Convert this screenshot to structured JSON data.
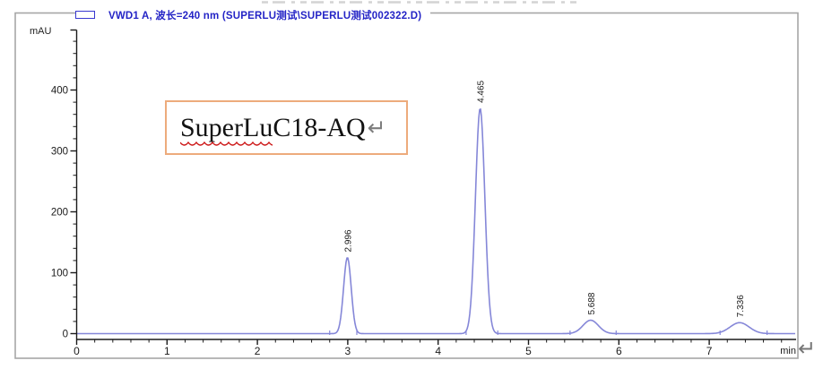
{
  "legend": {
    "label": "VWD1 A, 波长=240 nm (SUPERLU测试\\SUPERLU测试002322.D)"
  },
  "annotation_box": {
    "word": "SuperLu",
    "rest": " C18-AQ",
    "full_text": "SuperLu C18-AQ"
  },
  "formatting_marks": {
    "box_return": "↵",
    "line_return": "↵"
  },
  "colors": {
    "curve": "#8587d8",
    "legend_text": "#2424c6",
    "frame": "#a6a6a6",
    "axis": "#1a1a1a",
    "box_border": "#edab7c",
    "squiggle": "#cc1414",
    "return_mark": "#767676",
    "artifact": "#c9c9c9"
  },
  "chart_data": {
    "type": "line",
    "title": "VWD1 A, 波长=240 nm (SUPERLU测试\\SUPERLU测试002322.D)",
    "detector_signal": "VWD1 A",
    "wavelength_nm": 240,
    "xlabel": "min",
    "ylabel": "mAU",
    "x_ticks": [
      0,
      1,
      2,
      3,
      4,
      5,
      6,
      7
    ],
    "y_ticks": [
      0,
      100,
      200,
      300,
      400
    ],
    "x_minor_step": 0.2,
    "y_minor_step": 20,
    "xlim": [
      0,
      7.96
    ],
    "ylim": [
      0,
      497
    ],
    "grid": false,
    "legend_position": "top-left",
    "baseline_mAU": 0,
    "peaks": [
      {
        "label": "2.996",
        "rt_min": 2.996,
        "height_mAU": 125,
        "sigma_min": 0.042
      },
      {
        "label": "4.465",
        "rt_min": 4.465,
        "height_mAU": 370,
        "sigma_min": 0.052
      },
      {
        "label": "5.688",
        "rt_min": 5.688,
        "height_mAU": 22,
        "sigma_min": 0.085
      },
      {
        "label": "7.336",
        "rt_min": 7.336,
        "height_mAU": 18,
        "sigma_min": 0.105
      }
    ],
    "integration_marks_min": [
      2.8,
      3.1,
      4.31,
      4.66,
      5.46,
      5.97,
      7.12,
      7.64
    ]
  }
}
